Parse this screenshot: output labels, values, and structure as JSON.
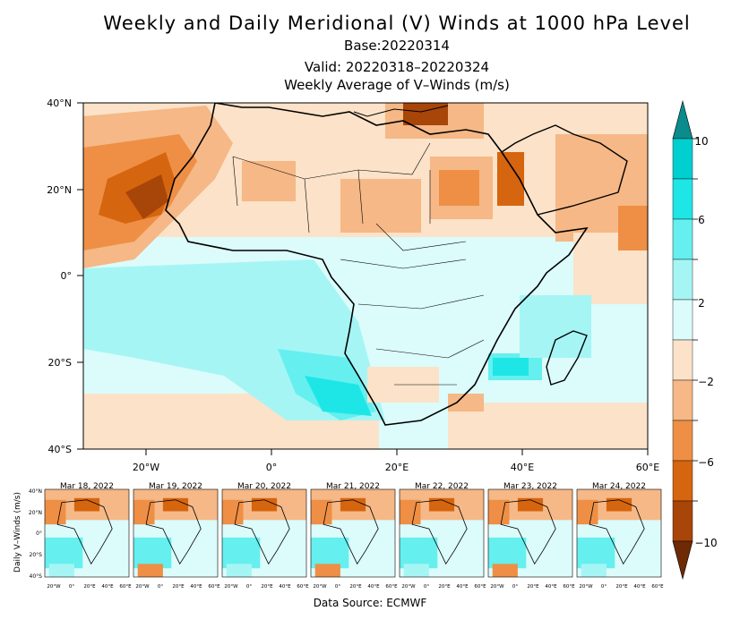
{
  "header": {
    "title": "Weekly and Daily Meridional (V) Winds at 1000 hPa Level",
    "base": "Base:20220314",
    "valid": "Valid: 20220318–20220324",
    "subtitle": "Weekly Average of V–Winds (m/s)"
  },
  "map": {
    "lat_labels": [
      "40°N",
      "20°N",
      "0°",
      "20°S",
      "40°S"
    ],
    "lon_labels": [
      "20°W",
      "0°",
      "20°E",
      "40°E",
      "60°E"
    ]
  },
  "colorbar": {
    "labels": [
      "10",
      "6",
      "2",
      "−2",
      "−6",
      "−10"
    ],
    "colors": [
      "#0a8c8c",
      "#00cfcf",
      "#1ee6e6",
      "#66efef",
      "#a6f5f5",
      "#dcfbfb",
      "#fbe2c8",
      "#f5b886",
      "#ee8f45",
      "#d6650f",
      "#a84508",
      "#6e2a04"
    ]
  },
  "daily": {
    "ylabel": "Daily V–Winds (m/s)",
    "panels": [
      "Mar 18, 2022",
      "Mar 19, 2022",
      "Mar 20, 2022",
      "Mar 21, 2022",
      "Mar 22, 2022",
      "Mar 23, 2022",
      "Mar 24, 2022"
    ],
    "lat_labels": [
      "40°N",
      "20°N",
      "0°",
      "20°S",
      "40°S"
    ],
    "lon_labels": [
      "20°W",
      "0°",
      "20°E",
      "40°E",
      "60°E"
    ]
  },
  "footer": {
    "source": "Data Source: ECMWF"
  }
}
